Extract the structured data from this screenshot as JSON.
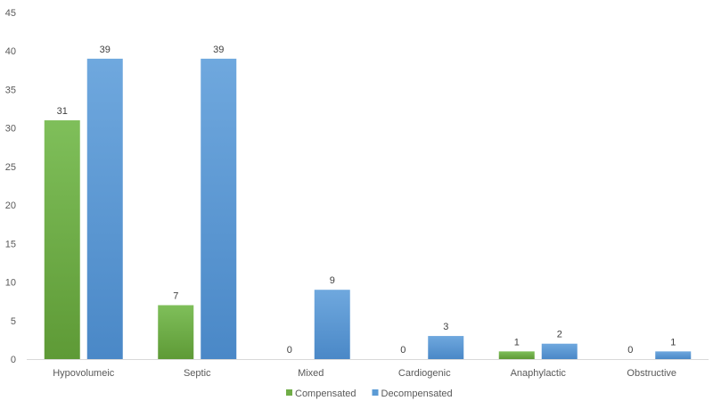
{
  "chart_data": {
    "type": "bar",
    "title": "",
    "xlabel": "",
    "ylabel": "",
    "ylim": [
      0,
      45
    ],
    "yticks": [
      0,
      5,
      10,
      15,
      20,
      25,
      30,
      35,
      40,
      45
    ],
    "grid": false,
    "legend_position": "bottom",
    "categories": [
      "Hypovolumeic",
      "Septic",
      "Mixed",
      "Cardiogenic",
      "Anaphylactic",
      "Obstructive"
    ],
    "series": [
      {
        "name": "Compensated",
        "values": [
          31,
          7,
          0,
          0,
          1,
          0
        ],
        "color": "#70ad47",
        "color_light": "#7fbf5a",
        "color_dark": "#5e9a36"
      },
      {
        "name": "Decompensated",
        "values": [
          39,
          39,
          9,
          3,
          2,
          1
        ],
        "color": "#5b9bd5",
        "color_light": "#6fa8de",
        "color_dark": "#4a88c7"
      }
    ]
  }
}
